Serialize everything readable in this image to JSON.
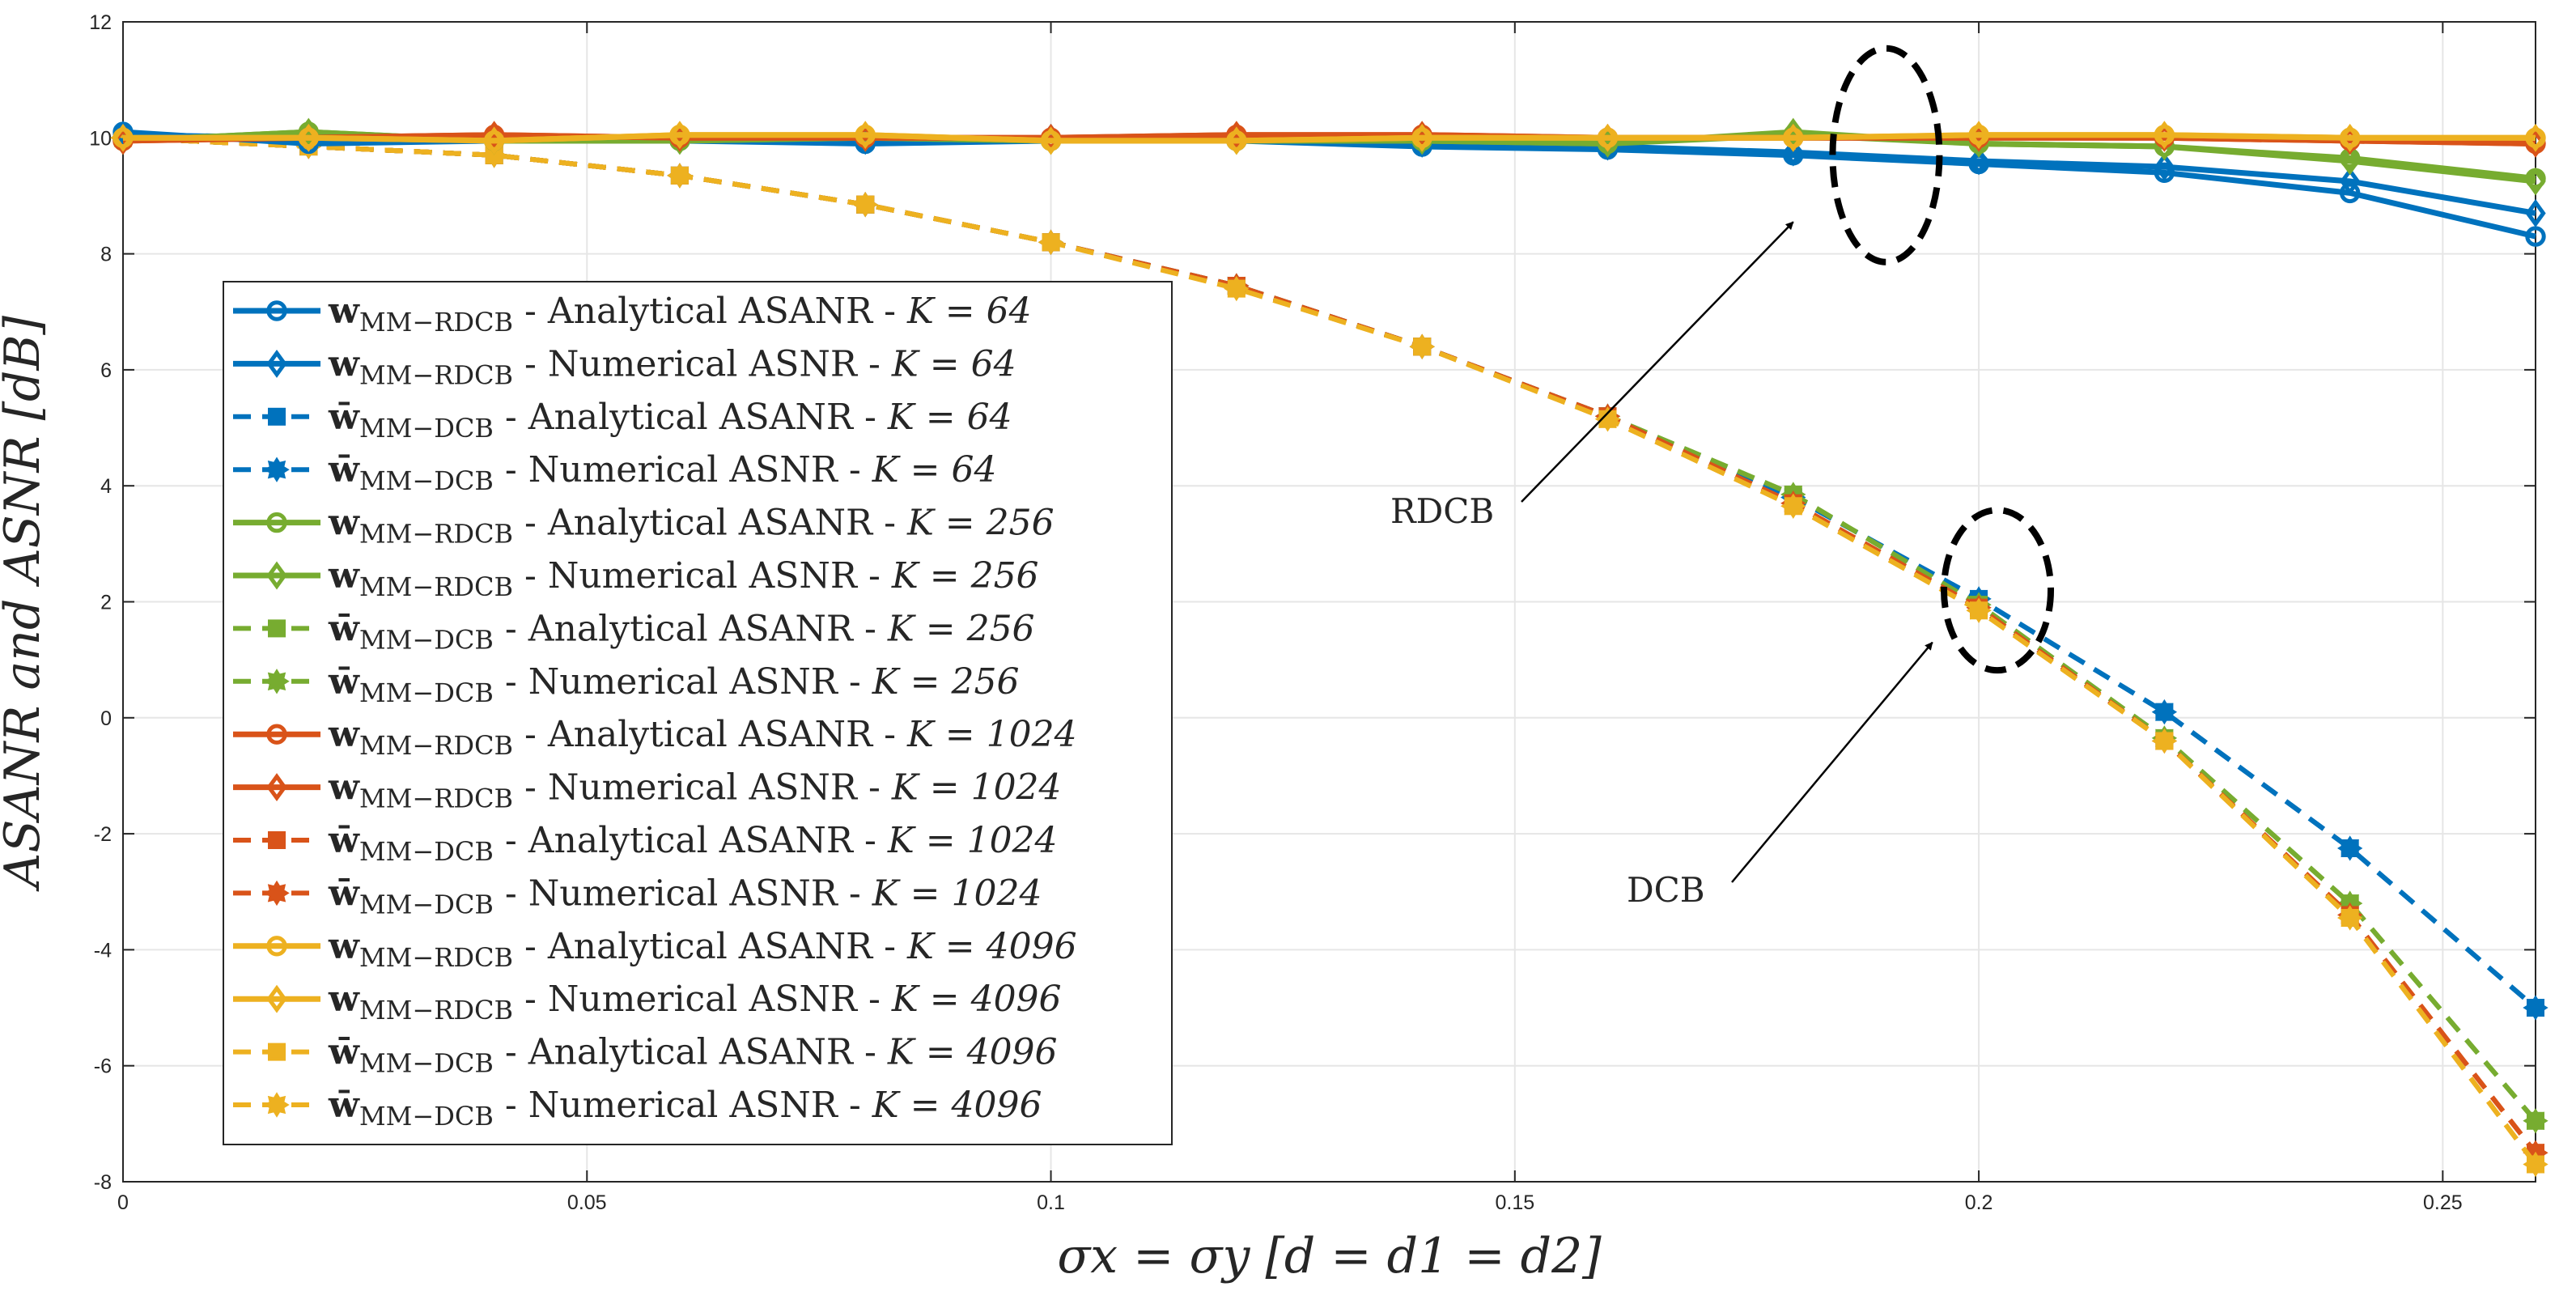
{
  "chart_data": {
    "type": "line",
    "title": "",
    "xlabel": "σx = σy [d = d1 = d2]",
    "ylabel": "ASANR and ASNR [dB]",
    "xlim": [
      0,
      0.26
    ],
    "ylim": [
      -8,
      12
    ],
    "grid": true,
    "legend_position": "left",
    "x_ticks": [
      0,
      0.05,
      0.1,
      0.15,
      0.2,
      0.25
    ],
    "x_tick_labels": [
      "0",
      "0.05",
      "0.1",
      "0.15",
      "0.2",
      "0.25"
    ],
    "y_ticks": [
      -8,
      -6,
      -4,
      -2,
      0,
      2,
      4,
      6,
      8,
      10,
      12
    ],
    "y_tick_labels": [
      "-8",
      "-6",
      "-4",
      "-2",
      "0",
      "2",
      "4",
      "6",
      "8",
      "10",
      "12"
    ],
    "x": [
      0,
      0.02,
      0.04,
      0.06,
      0.08,
      0.1,
      0.12,
      0.14,
      0.16,
      0.18,
      0.2,
      0.22,
      0.24,
      0.26
    ],
    "series": [
      {
        "name": "wMM-RDCB - Analytical ASANR - K = 64",
        "beamformer": "w",
        "subscript": "MM−RDCB",
        "description": " - Analytical ASANR - ",
        "k_label": "K = 64",
        "color": "#0072BD",
        "style": "solid",
        "marker": "circle",
        "values": [
          10.1,
          9.9,
          9.95,
          9.95,
          9.9,
          9.95,
          9.95,
          9.85,
          9.8,
          9.7,
          9.55,
          9.4,
          9.05,
          8.3
        ]
      },
      {
        "name": "wMM-RDCB - Numerical ASNR - K = 64",
        "beamformer": "w",
        "subscript": "MM−RDCB",
        "description": " - Numerical ASNR - ",
        "k_label": "K = 64",
        "color": "#0072BD",
        "style": "solid",
        "marker": "diamond",
        "values": [
          10.05,
          10.0,
          10.0,
          10.0,
          9.95,
          10.0,
          10.0,
          9.9,
          9.85,
          9.75,
          9.6,
          9.5,
          9.25,
          8.7
        ]
      },
      {
        "name": "w̄MM-DCB - Analytical ASANR - K = 64",
        "beamformer": "w̄",
        "subscript": "MM−DCB",
        "description": " - Analytical ASANR - ",
        "k_label": "K = 64",
        "color": "#0072BD",
        "style": "dashed",
        "marker": "square",
        "values": [
          10.0,
          9.85,
          9.7,
          9.35,
          8.85,
          8.2,
          7.45,
          6.4,
          5.2,
          3.8,
          2.05,
          0.1,
          -2.25,
          -5.0
        ]
      },
      {
        "name": "w̄MM-DCB - Numerical ASNR - K = 64",
        "beamformer": "w̄",
        "subscript": "MM−DCB",
        "description": " - Numerical ASNR - ",
        "k_label": "K = 64",
        "color": "#0072BD",
        "style": "dashed",
        "marker": "star",
        "values": [
          10.0,
          9.85,
          9.7,
          9.35,
          8.85,
          8.2,
          7.45,
          6.4,
          5.2,
          3.8,
          2.05,
          0.1,
          -2.25,
          -5.0
        ]
      },
      {
        "name": "wMM-RDCB - Analytical ASANR - K = 256",
        "beamformer": "w",
        "subscript": "MM−RDCB",
        "description": " - Analytical ASANR - ",
        "k_label": "K = 256",
        "color": "#77AC30",
        "style": "solid",
        "marker": "circle",
        "values": [
          9.95,
          10.1,
          9.95,
          9.95,
          10.0,
          9.95,
          9.95,
          9.95,
          9.9,
          10.05,
          9.9,
          9.85,
          9.65,
          9.3
        ]
      },
      {
        "name": "wMM-RDCB - Numerical ASNR - K = 256",
        "beamformer": "w",
        "subscript": "MM−RDCB",
        "description": " - Numerical ASNR - ",
        "k_label": "K = 256",
        "color": "#77AC30",
        "style": "solid",
        "marker": "diamond",
        "values": [
          9.95,
          10.1,
          9.95,
          9.95,
          10.0,
          9.95,
          9.95,
          9.95,
          9.9,
          10.1,
          9.9,
          9.85,
          9.6,
          9.25
        ]
      },
      {
        "name": "w̄MM-DCB - Analytical ASANR - K = 256",
        "beamformer": "w̄",
        "subscript": "MM−DCB",
        "description": " - Analytical ASANR - ",
        "k_label": "K = 256",
        "color": "#77AC30",
        "style": "dashed",
        "marker": "square",
        "values": [
          10.0,
          9.85,
          9.7,
          9.35,
          8.85,
          8.2,
          7.45,
          6.4,
          5.2,
          3.85,
          1.95,
          -0.35,
          -3.2,
          -6.95
        ]
      },
      {
        "name": "w̄MM-DCB - Numerical ASNR - K = 256",
        "beamformer": "w̄",
        "subscript": "MM−DCB",
        "description": " - Numerical ASNR - ",
        "k_label": "K = 256",
        "color": "#77AC30",
        "style": "dashed",
        "marker": "star",
        "values": [
          10.0,
          9.85,
          9.7,
          9.35,
          8.85,
          8.2,
          7.45,
          6.4,
          5.2,
          3.85,
          1.95,
          -0.35,
          -3.2,
          -6.95
        ]
      },
      {
        "name": "wMM-RDCB - Analytical ASANR - K = 1024",
        "beamformer": "w",
        "subscript": "MM−RDCB",
        "description": " - Analytical ASANR - ",
        "k_label": "K = 1024",
        "color": "#D95319",
        "style": "solid",
        "marker": "circle",
        "values": [
          9.95,
          10.0,
          10.05,
          10.0,
          10.0,
          10.0,
          10.05,
          10.05,
          10.0,
          10.0,
          10.0,
          10.0,
          9.95,
          9.9
        ]
      },
      {
        "name": "wMM-RDCB - Numerical ASNR - K = 1024",
        "beamformer": "w",
        "subscript": "MM−RDCB",
        "description": " - Numerical ASNR - ",
        "k_label": "K = 1024",
        "color": "#D95319",
        "style": "solid",
        "marker": "diamond",
        "values": [
          9.95,
          10.0,
          10.05,
          10.0,
          10.0,
          10.0,
          10.05,
          10.05,
          10.0,
          10.0,
          10.0,
          10.0,
          9.95,
          9.9
        ]
      },
      {
        "name": "w̄MM-DCB - Analytical ASANR - K = 1024",
        "beamformer": "w̄",
        "subscript": "MM−DCB",
        "description": " - Analytical ASANR - ",
        "k_label": "K = 1024",
        "color": "#D95319",
        "style": "dashed",
        "marker": "square",
        "values": [
          10.0,
          9.85,
          9.7,
          9.35,
          8.85,
          8.2,
          7.45,
          6.4,
          5.2,
          3.7,
          1.9,
          -0.4,
          -3.4,
          -7.5
        ]
      },
      {
        "name": "w̄MM-DCB - Numerical ASNR - K = 1024",
        "beamformer": "w̄",
        "subscript": "MM−DCB",
        "description": " - Numerical ASNR - ",
        "k_label": "K = 1024",
        "color": "#D95319",
        "style": "dashed",
        "marker": "star",
        "values": [
          10.0,
          9.85,
          9.7,
          9.35,
          8.85,
          8.2,
          7.45,
          6.4,
          5.2,
          3.7,
          1.9,
          -0.4,
          -3.4,
          -7.5
        ]
      },
      {
        "name": "wMM-RDCB - Analytical ASANR - K = 4096",
        "beamformer": "w",
        "subscript": "MM−RDCB",
        "description": " - Analytical ASANR - ",
        "k_label": "K = 4096",
        "color": "#EDB120",
        "style": "solid",
        "marker": "circle",
        "values": [
          10.0,
          10.0,
          9.95,
          10.05,
          10.05,
          9.95,
          9.95,
          10.0,
          10.0,
          10.0,
          10.05,
          10.05,
          10.0,
          10.0
        ]
      },
      {
        "name": "wMM-RDCB - Numerical ASNR - K = 4096",
        "beamformer": "w",
        "subscript": "MM−RDCB",
        "description": " - Numerical ASNR - ",
        "k_label": "K = 4096",
        "color": "#EDB120",
        "style": "solid",
        "marker": "diamond",
        "values": [
          10.0,
          10.0,
          9.95,
          10.05,
          10.05,
          9.95,
          9.95,
          10.0,
          10.0,
          10.0,
          10.05,
          10.05,
          10.0,
          10.0
        ]
      },
      {
        "name": "w̄MM-DCB - Analytical ASANR - K = 4096",
        "beamformer": "w̄",
        "subscript": "MM−DCB",
        "description": " - Analytical ASANR - ",
        "k_label": "K = 4096",
        "color": "#EDB120",
        "style": "dashed",
        "marker": "square",
        "values": [
          10.0,
          9.85,
          9.7,
          9.35,
          8.85,
          8.2,
          7.4,
          6.4,
          5.15,
          3.65,
          1.85,
          -0.4,
          -3.45,
          -7.7
        ]
      },
      {
        "name": "w̄MM-DCB - Numerical ASNR - K = 4096",
        "beamformer": "w̄",
        "subscript": "MM−DCB",
        "description": " - Numerical ASNR - ",
        "k_label": "K = 4096",
        "color": "#EDB120",
        "style": "dashed",
        "marker": "star",
        "values": [
          10.0,
          9.85,
          9.7,
          9.35,
          8.85,
          8.2,
          7.4,
          6.4,
          5.15,
          3.65,
          1.85,
          -0.4,
          -3.45,
          -7.7
        ]
      }
    ],
    "annotations": [
      {
        "text": "RDCB",
        "ellipse_center": [
          0.19,
          9.7
        ],
        "arrow_tip": [
          0.18,
          8.55
        ],
        "label_at": [
          0.14,
          3.5
        ]
      },
      {
        "text": "DCB",
        "ellipse_center": [
          0.202,
          2.2
        ],
        "arrow_tip": [
          0.195,
          1.3
        ],
        "label_at": [
          0.165,
          -3.3
        ]
      }
    ]
  }
}
